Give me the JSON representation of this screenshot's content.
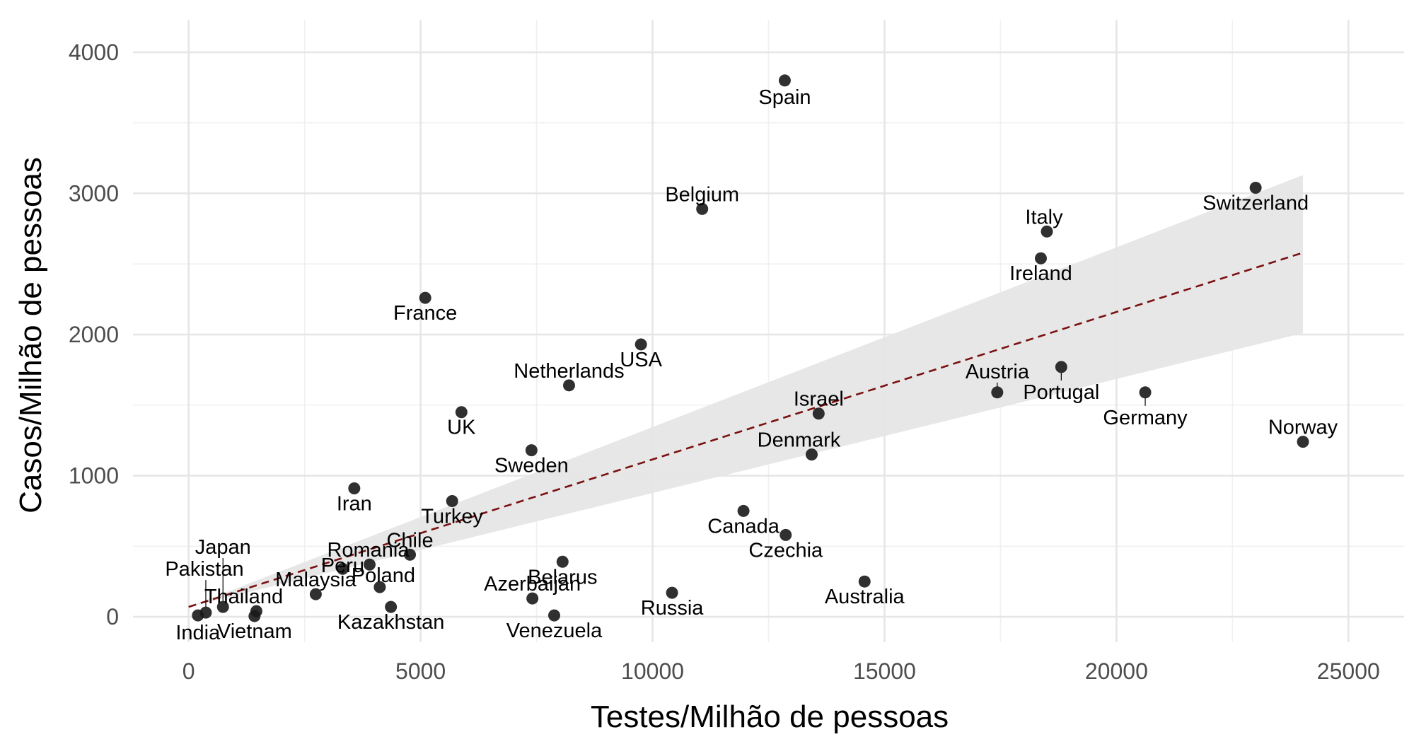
{
  "chart_data": {
    "type": "scatter",
    "xlabel": "Testes/Milhão de pessoas",
    "ylabel": "Casos/Milhão de pessoas",
    "xlim": [
      -1200,
      26200
    ],
    "ylim": [
      -180,
      4230
    ],
    "x_ticks": [
      0,
      5000,
      10000,
      15000,
      20000,
      25000
    ],
    "y_ticks": [
      0,
      1000,
      2000,
      3000,
      4000
    ],
    "grid": true,
    "points": [
      {
        "label": "Spain",
        "x": 12850,
        "y": 3800
      },
      {
        "label": "Belgium",
        "x": 11070,
        "y": 2890
      },
      {
        "label": "Switzerland",
        "x": 23000,
        "y": 3040
      },
      {
        "label": "Italy",
        "x": 18500,
        "y": 2730
      },
      {
        "label": "Ireland",
        "x": 18370,
        "y": 2540
      },
      {
        "label": "France",
        "x": 5100,
        "y": 2260
      },
      {
        "label": "USA",
        "x": 9750,
        "y": 1930
      },
      {
        "label": "Netherlands",
        "x": 8200,
        "y": 1640
      },
      {
        "label": "Austria",
        "x": 17430,
        "y": 1590
      },
      {
        "label": "Portugal",
        "x": 18810,
        "y": 1770
      },
      {
        "label": "Germany",
        "x": 20620,
        "y": 1590
      },
      {
        "label": "Israel",
        "x": 13580,
        "y": 1440
      },
      {
        "label": "UK",
        "x": 5880,
        "y": 1450
      },
      {
        "label": "Norway",
        "x": 24020,
        "y": 1240
      },
      {
        "label": "Denmark",
        "x": 13430,
        "y": 1150
      },
      {
        "label": "Sweden",
        "x": 7390,
        "y": 1180
      },
      {
        "label": "Iran",
        "x": 3570,
        "y": 910
      },
      {
        "label": "Turkey",
        "x": 5680,
        "y": 820
      },
      {
        "label": "Canada",
        "x": 11960,
        "y": 750
      },
      {
        "label": "Czechia",
        "x": 12870,
        "y": 580
      },
      {
        "label": "Chile",
        "x": 4770,
        "y": 440
      },
      {
        "label": "Romania",
        "x": 3900,
        "y": 370
      },
      {
        "label": "Peru",
        "x": 3320,
        "y": 340
      },
      {
        "label": "Poland",
        "x": 4120,
        "y": 210
      },
      {
        "label": "Belarus",
        "x": 8060,
        "y": 390
      },
      {
        "label": "Malaysia",
        "x": 2740,
        "y": 160
      },
      {
        "label": "Azerbaijan",
        "x": 7410,
        "y": 130
      },
      {
        "label": "Australia",
        "x": 14570,
        "y": 250
      },
      {
        "label": "Russia",
        "x": 10420,
        "y": 170
      },
      {
        "label": "Kazakhstan",
        "x": 4360,
        "y": 70
      },
      {
        "label": "Venezuela",
        "x": 7880,
        "y": 10
      },
      {
        "label": "Japan",
        "x": 740,
        "y": 70
      },
      {
        "label": "Pakistan",
        "x": 370,
        "y": 30
      },
      {
        "label": "Thailand",
        "x": 1460,
        "y": 40
      },
      {
        "label": "Vietnam",
        "x": 1420,
        "y": 5
      },
      {
        "label": "India",
        "x": 200,
        "y": 10
      }
    ],
    "fit": {
      "type": "linear",
      "line_color": "#7a1010",
      "line_style": "dashed",
      "band_color": "#e6e6e6",
      "x_range": [
        0,
        24020
      ],
      "y_range": [
        70,
        2580
      ],
      "band_lower": [
        70,
        2010
      ],
      "band_upper": [
        70,
        3130
      ]
    }
  }
}
